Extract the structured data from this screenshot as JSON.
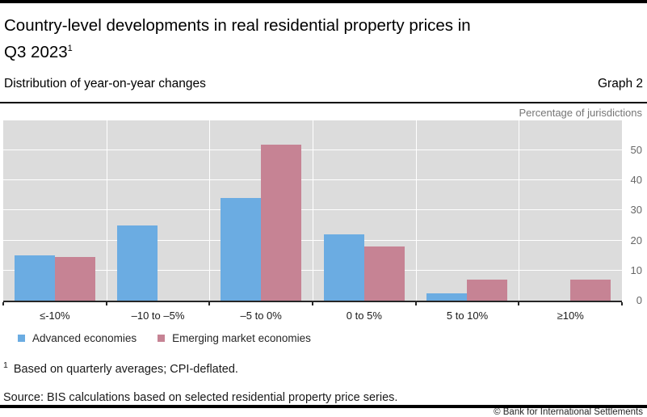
{
  "header": {
    "title_line1": "Country-level developments in real residential property prices in",
    "title_line2": "Q3 2023",
    "title_footnote_marker": "1",
    "subtitle": "Distribution of year-on-year changes",
    "graph_label": "Graph 2"
  },
  "chart_data": {
    "type": "bar",
    "title": "Country-level developments in real residential property prices in Q3 2023",
    "unit_label": "Percentage of jurisdictions",
    "categories": [
      "≤-10%",
      "–10 to –5%",
      "–5 to 0%",
      "0 to 5%",
      "5 to 10%",
      "≥10%"
    ],
    "series": [
      {
        "name": "Advanced economies",
        "color": "#6bace2",
        "values": [
          15,
          25,
          34,
          22,
          2.5,
          0
        ]
      },
      {
        "name": "Emerging market economies",
        "color": "#c68394",
        "values": [
          14.5,
          0,
          52,
          18,
          7,
          7
        ]
      }
    ],
    "ylim": [
      0,
      60
    ],
    "yticks": [
      0,
      10,
      20,
      30,
      40,
      50
    ],
    "ytick_side": "right",
    "grid": true,
    "plot_background": "#dcdcdc",
    "gridline_color": "#ffffff",
    "legend_position": "bottom-left"
  },
  "footnote": {
    "marker": "1",
    "text": "Based on quarterly averages; CPI-deflated."
  },
  "source": "Source: BIS calculations based on selected residential property price series.",
  "copyright": "© Bank for International Settlements"
}
